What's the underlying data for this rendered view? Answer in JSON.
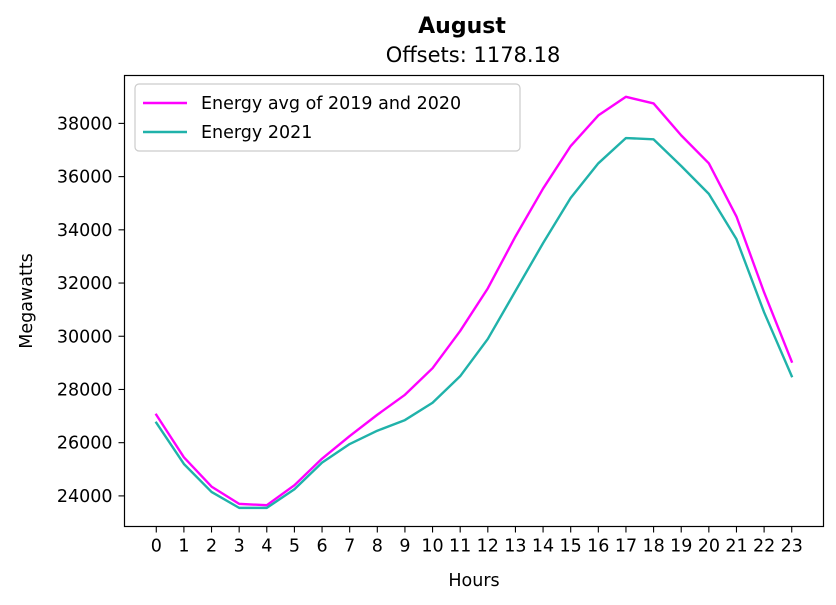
{
  "chart_data": {
    "type": "line",
    "title": "August",
    "subtitle": "Offsets: 1178.18",
    "xlabel": "Hours",
    "ylabel": "Megawatts",
    "x": [
      0,
      1,
      2,
      3,
      4,
      5,
      6,
      7,
      8,
      9,
      10,
      11,
      12,
      13,
      14,
      15,
      16,
      17,
      18,
      19,
      20,
      21,
      22,
      23
    ],
    "xlim": [
      -1.15,
      24.15
    ],
    "ylim": [
      22850,
      39800
    ],
    "yticks": [
      24000,
      26000,
      28000,
      30000,
      32000,
      34000,
      36000,
      38000
    ],
    "grid": false,
    "legend_position": "top-left",
    "series": [
      {
        "name": "Energy avg of 2019 and 2020",
        "color": "#ff00ff",
        "values": [
          27050,
          25450,
          24350,
          23700,
          23650,
          24400,
          25400,
          26250,
          27050,
          27800,
          28800,
          30200,
          31800,
          33750,
          35550,
          37150,
          38300,
          39000,
          38750,
          37550,
          36500,
          34500,
          31650,
          29050
        ]
      },
      {
        "name": "Energy 2021",
        "color": "#20b2aa",
        "values": [
          26750,
          25200,
          24150,
          23550,
          23550,
          24250,
          25250,
          25950,
          26450,
          26850,
          27500,
          28500,
          29900,
          31700,
          33500,
          35200,
          36500,
          37450,
          37400,
          36400,
          35350,
          33650,
          30900,
          28500
        ]
      }
    ]
  }
}
